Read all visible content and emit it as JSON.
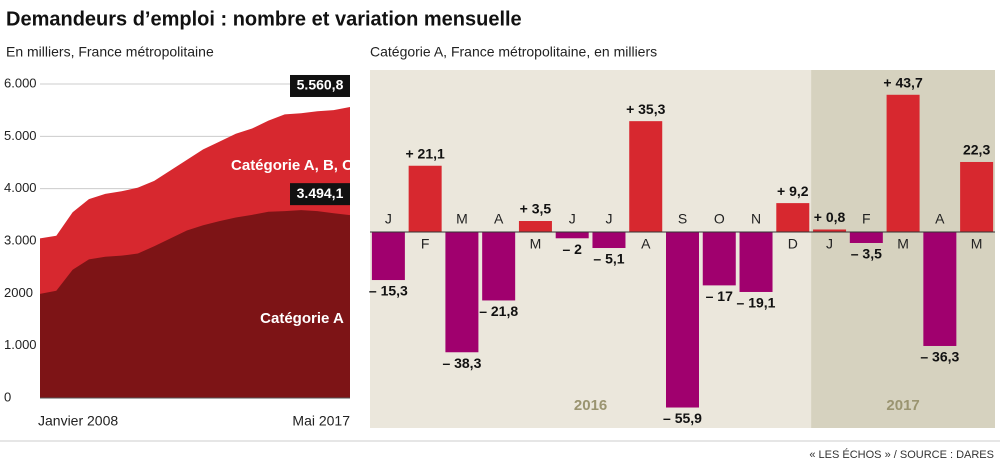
{
  "title": "Demandeurs d’emploi : nombre et variation mensuelle",
  "source": "« LES ÉCHOS » / SOURCE : DARES",
  "chart_data": [
    {
      "type": "area",
      "subtitle": "En milliers, France métropolitaine",
      "categories": [
        "Janvier 2008",
        null,
        null,
        null,
        null,
        null,
        null,
        null,
        null,
        null,
        null,
        null,
        null,
        null,
        null,
        null,
        null,
        null,
        null,
        "Mai 2017"
      ],
      "series": [
        {
          "name": "Catégorie A, B, C",
          "color": "#d7282f",
          "end_value_label": "5.560,8",
          "values": [
            3050,
            3100,
            3550,
            3800,
            3900,
            3950,
            4020,
            4150,
            4350,
            4550,
            4750,
            4900,
            5050,
            5150,
            5300,
            5420,
            5440,
            5480,
            5500,
            5560.8
          ]
        },
        {
          "name": "Catégorie A",
          "color": "#7d1416",
          "end_value_label": "3.494,1",
          "values": [
            1990,
            2050,
            2450,
            2650,
            2700,
            2720,
            2760,
            2900,
            3050,
            3200,
            3300,
            3380,
            3450,
            3500,
            3560,
            3570,
            3590,
            3570,
            3530,
            3494.1
          ]
        }
      ],
      "ylim": [
        0,
        6000
      ],
      "yticks": [
        0,
        {
          "value": 1000,
          "label": "1.000"
        },
        2000,
        {
          "value": 3000,
          "label": "3.000"
        },
        {
          "value": 4000,
          "label": "4.000"
        },
        {
          "value": 5000,
          "label": "5.000"
        },
        {
          "value": 6000,
          "label": "6.000"
        }
      ],
      "grid": true
    },
    {
      "type": "bar",
      "subtitle": "Catégorie A, France métropolitaine, en milliers",
      "categories": [
        "J",
        "F",
        "M",
        "A",
        "M",
        "J",
        "J",
        "A",
        "S",
        "O",
        "N",
        "D",
        "J",
        "F",
        "M",
        "A",
        "M"
      ],
      "values": [
        -15.3,
        21.1,
        -38.3,
        -21.8,
        3.5,
        -2,
        -5.1,
        35.3,
        -55.9,
        -17,
        -19.1,
        9.2,
        0.8,
        -3.5,
        43.7,
        -36.3,
        22.3
      ],
      "value_labels": [
        "– 15,3",
        "+ 21,1",
        "– 38,3",
        "– 21,8",
        "+ 3,5",
        "– 2",
        "– 5,1",
        "+ 35,3",
        "– 55,9",
        "– 17",
        "– 19,1",
        "+ 9,2",
        "+ 0,8",
        "– 3,5",
        "+ 43,7",
        "– 36,3",
        "22,3"
      ],
      "positive_color": "#d7282f",
      "negative_color": "#a0006e",
      "years": [
        "2016",
        "2017"
      ]
    }
  ]
}
